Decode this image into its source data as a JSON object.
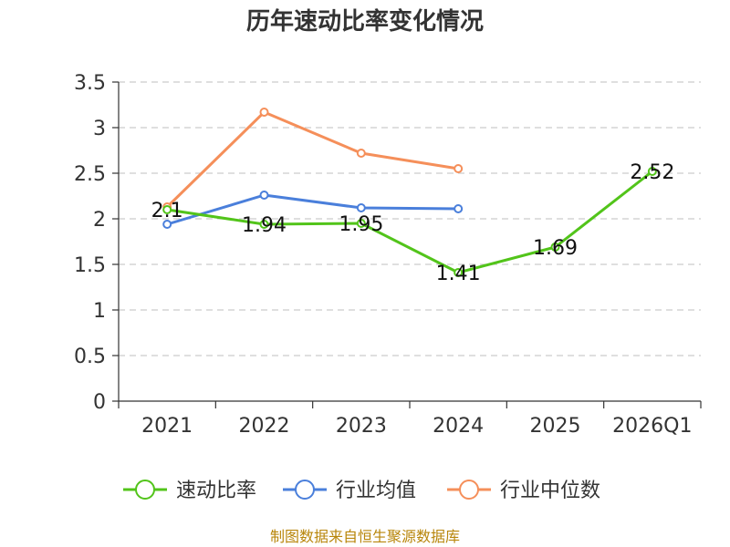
{
  "chart_data": {
    "type": "line",
    "title": "历年速动比率变化情况",
    "categories": [
      "2021",
      "2022",
      "2023",
      "2024",
      "2025",
      "2026Q1"
    ],
    "y_ticks": [
      "0",
      "0.5",
      "1",
      "1.5",
      "2",
      "2.5",
      "3",
      "3.5"
    ],
    "ylim": [
      0,
      3.5
    ],
    "grid": true,
    "legend_position": "bottom",
    "series": [
      {
        "name": "速动比率",
        "color": "#52c41a",
        "values": [
          2.1,
          1.94,
          1.95,
          1.41,
          1.69,
          2.52
        ],
        "labels": [
          "2.1",
          "1.94",
          "1.95",
          "1.41",
          "1.69",
          "2.52"
        ],
        "show_labels": true
      },
      {
        "name": "行业均值",
        "color": "#4a7fdb",
        "values": [
          1.94,
          2.26,
          2.12,
          2.11,
          null,
          null
        ],
        "show_labels": false
      },
      {
        "name": "行业中位数",
        "color": "#f58f5a",
        "values": [
          2.13,
          3.17,
          2.72,
          2.55,
          null,
          null
        ],
        "show_labels": false
      }
    ],
    "source": "制图数据来自恒生聚源数据库"
  }
}
